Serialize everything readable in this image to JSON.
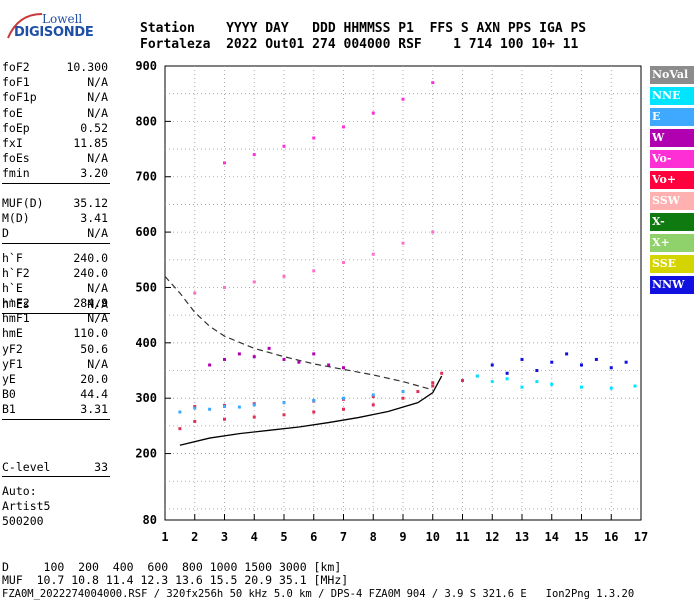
{
  "logo": {
    "top": "Lowell",
    "main": "DIGISONDE"
  },
  "header": {
    "line1": "Station    YYYY DAY   DDD HHMMSS P1  FFS S AXN PPS IGA PS",
    "line2": "Fortaleza  2022 Out01 274 004000 RSF    1 714 100 10+ 11"
  },
  "params_a": [
    {
      "k": "foF2",
      "v": "10.300"
    },
    {
      "k": "foF1",
      "v": "N/A"
    },
    {
      "k": "foF1p",
      "v": "N/A"
    },
    {
      "k": "foE",
      "v": "N/A"
    },
    {
      "k": "foEp",
      "v": "0.52"
    },
    {
      "k": "fxI",
      "v": "11.85"
    },
    {
      "k": "foEs",
      "v": "N/A"
    },
    {
      "k": "fmin",
      "v": "3.20"
    }
  ],
  "params_b": [
    {
      "k": "MUF(D)",
      "v": "35.12"
    },
    {
      "k": "M(D)",
      "v": "3.41"
    },
    {
      "k": "D",
      "v": "N/A"
    }
  ],
  "params_c": [
    {
      "k": "h`F",
      "v": "240.0"
    },
    {
      "k": "h`F2",
      "v": "240.0"
    },
    {
      "k": "h`E",
      "v": "N/A"
    },
    {
      "k": "h`Es",
      "v": "N/A"
    }
  ],
  "params_d": [
    {
      "k": "hmF2",
      "v": "284.9"
    },
    {
      "k": "hmF1",
      "v": "N/A"
    },
    {
      "k": "hmE",
      "v": "110.0"
    },
    {
      "k": "yF2",
      "v": "50.6"
    },
    {
      "k": "yF1",
      "v": "N/A"
    },
    {
      "k": "yE",
      "v": "20.0"
    },
    {
      "k": "B0",
      "v": "44.4"
    },
    {
      "k": "B1",
      "v": "3.31"
    }
  ],
  "params_e": [
    {
      "k": "C-level",
      "v": "33"
    }
  ],
  "auto": {
    "line1": "Auto:",
    "line2": "Artist5",
    "line3": "500200"
  },
  "legend": [
    {
      "label": "NoVal",
      "color": "#8c8c8c"
    },
    {
      "label": "NNE",
      "color": "#00e5ff"
    },
    {
      "label": "E",
      "color": "#3fa9ff"
    },
    {
      "label": "W",
      "color": "#b000b0"
    },
    {
      "label": "Vo-",
      "color": "#ff2fd6"
    },
    {
      "label": "Vo+",
      "color": "#ff003c"
    },
    {
      "label": "SSW",
      "color": "#ffb0b0"
    },
    {
      "label": "X-",
      "color": "#0f7a0f"
    },
    {
      "label": "X+",
      "color": "#8fd16a"
    },
    {
      "label": "SSE",
      "color": "#d4d400"
    },
    {
      "label": "NNW",
      "color": "#1010e0"
    }
  ],
  "footer": {
    "line1": "D     100  200  400  600  800 1000 1500 3000 [km]",
    "line2": "MUF  10.7 10.8 11.4 12.3 13.6 15.5 20.9 35.1 [MHz]",
    "line3": "FZA0M_2022274004000.RSF / 320fx256h 50 kHz 5.0 km / DPS-4 FZA0M 904 / 3.9 S 321.6 E   Ion2Png 1.3.20"
  },
  "chart_data": {
    "type": "scatter",
    "title": "",
    "xlabel": "",
    "ylabel": "",
    "xlim": [
      1,
      17
    ],
    "ylim": [
      80,
      900
    ],
    "x_ticks": [
      1,
      2,
      3,
      4,
      5,
      6,
      7,
      8,
      9,
      10,
      11,
      12,
      13,
      14,
      15,
      16,
      17
    ],
    "y_ticks": [
      80,
      200,
      300,
      400,
      500,
      600,
      700,
      800,
      900
    ],
    "grid": true,
    "legend_position": "right",
    "series": [
      {
        "name": "trace-1",
        "color": "#e0305a",
        "x": [
          1.5,
          2.0,
          3.0,
          4.0,
          5.0,
          6.0,
          7.0,
          8.0,
          9.0,
          9.5,
          10.0,
          10.3
        ],
        "y": [
          245,
          258,
          262,
          266,
          270,
          275,
          280,
          288,
          300,
          312,
          328,
          345
        ]
      },
      {
        "name": "trace-2",
        "color": "#e0305a",
        "x": [
          2.0,
          3.0,
          4.0,
          5.0,
          6.0,
          7.0,
          8.0,
          9.0,
          10.0,
          11.0,
          11.5
        ],
        "y": [
          285,
          287,
          290,
          292,
          295,
          298,
          303,
          312,
          322,
          332,
          340
        ]
      },
      {
        "name": "trace-3",
        "color": "#ff6fc8",
        "x": [
          2.0,
          3.0,
          4.0,
          5.0,
          6.0,
          7.0,
          8.0,
          9.0,
          10.0
        ],
        "y": [
          490,
          500,
          510,
          520,
          530,
          545,
          560,
          580,
          600
        ]
      },
      {
        "name": "trace-4",
        "color": "#ff2fd6",
        "x": [
          3.0,
          4.0,
          5.0,
          6.0,
          7.0,
          8.0,
          9.0,
          10.0
        ],
        "y": [
          725,
          740,
          755,
          770,
          790,
          815,
          840,
          870
        ]
      },
      {
        "name": "trace-5",
        "color": "#b000b0",
        "x": [
          2.5,
          3.0,
          3.5,
          4.0,
          4.5,
          5.0,
          5.5,
          6.0,
          6.5,
          7.0
        ],
        "y": [
          360,
          370,
          380,
          375,
          390,
          370,
          365,
          380,
          360,
          355
        ]
      },
      {
        "name": "trace-6",
        "color": "#3fa9ff",
        "x": [
          1.5,
          2.0,
          2.5,
          3.0,
          3.5,
          4.0,
          5.0,
          6.0,
          7.0,
          8.0,
          9.0
        ],
        "y": [
          275,
          282,
          280,
          285,
          284,
          288,
          292,
          296,
          300,
          306,
          312
        ]
      },
      {
        "name": "trace-7",
        "color": "#1010e0",
        "x": [
          12.0,
          12.5,
          13.0,
          13.5,
          14.0,
          14.5,
          15.0,
          15.5,
          16.0,
          16.5
        ],
        "y": [
          360,
          345,
          370,
          350,
          365,
          380,
          360,
          370,
          355,
          365
        ]
      },
      {
        "name": "trace-8",
        "color": "#00e5ff",
        "x": [
          11.5,
          12.0,
          12.5,
          13.0,
          13.5,
          14.0,
          15.0,
          16.0,
          16.8
        ],
        "y": [
          340,
          330,
          335,
          320,
          330,
          325,
          320,
          318,
          322
        ]
      }
    ],
    "profile_curve": {
      "x": [
        1.5,
        2.5,
        3.5,
        4.5,
        5.5,
        6.5,
        7.5,
        8.5,
        9.5,
        10.0,
        10.3
      ],
      "y": [
        215,
        228,
        236,
        242,
        248,
        256,
        265,
        276,
        292,
        310,
        340
      ]
    },
    "model_dashed_curve": {
      "x": [
        1.0,
        1.5,
        2.0,
        2.5,
        3.0,
        4.0,
        5.0,
        6.0,
        7.0,
        8.0,
        9.0,
        10.0
      ],
      "y": [
        520,
        490,
        455,
        430,
        412,
        390,
        375,
        362,
        352,
        342,
        330,
        315
      ]
    }
  }
}
